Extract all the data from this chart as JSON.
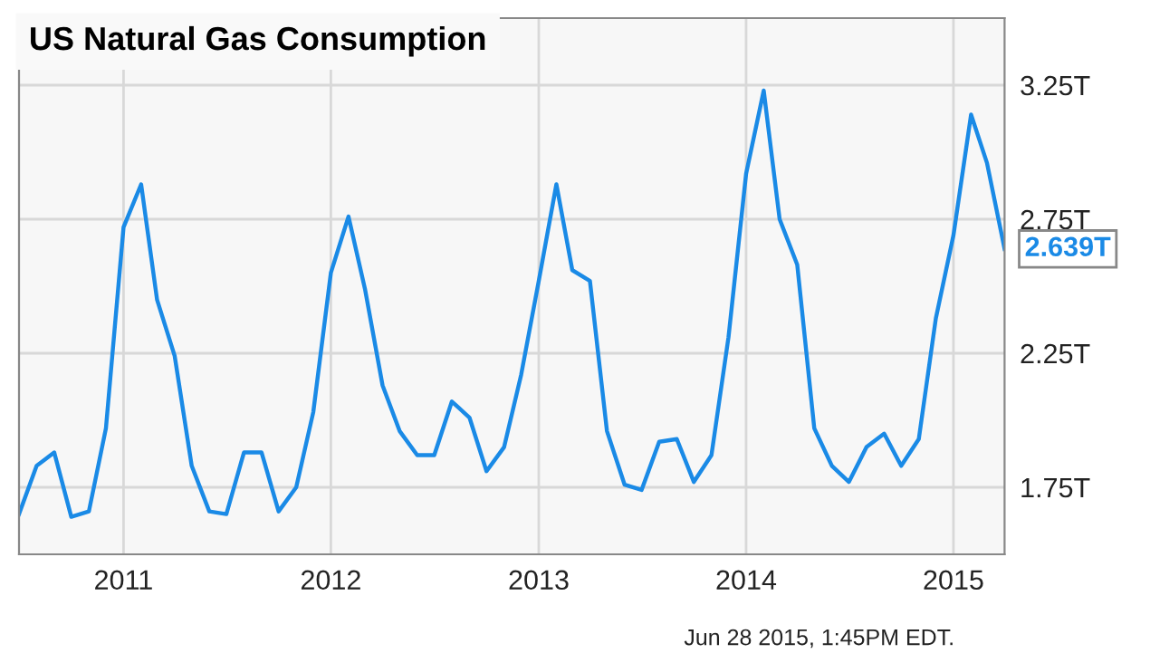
{
  "chart_data": {
    "type": "line",
    "title": "US Natural Gas Consumption",
    "x": [
      "2010-07",
      "2010-08",
      "2010-09",
      "2010-10",
      "2010-11",
      "2010-12",
      "2011-01",
      "2011-02",
      "2011-03",
      "2011-04",
      "2011-05",
      "2011-06",
      "2011-07",
      "2011-08",
      "2011-09",
      "2011-10",
      "2011-11",
      "2011-12",
      "2012-01",
      "2012-02",
      "2012-03",
      "2012-04",
      "2012-05",
      "2012-06",
      "2012-07",
      "2012-08",
      "2012-09",
      "2012-10",
      "2012-11",
      "2012-12",
      "2013-01",
      "2013-02",
      "2013-03",
      "2013-04",
      "2013-05",
      "2013-06",
      "2013-07",
      "2013-08",
      "2013-09",
      "2013-10",
      "2013-11",
      "2013-12",
      "2014-01",
      "2014-02",
      "2014-03",
      "2014-04",
      "2014-05",
      "2014-06",
      "2014-07",
      "2014-08",
      "2014-09",
      "2014-10",
      "2014-11",
      "2014-12",
      "2015-01",
      "2015-02",
      "2015-03",
      "2015-04"
    ],
    "series": [
      {
        "color": "#1a8ae6",
        "values": [
          1.65,
          1.83,
          1.88,
          1.64,
          1.66,
          1.97,
          2.72,
          2.88,
          2.45,
          2.24,
          1.83,
          1.66,
          1.65,
          1.88,
          1.88,
          1.66,
          1.75,
          2.03,
          2.55,
          2.76,
          2.49,
          2.13,
          1.96,
          1.87,
          1.87,
          2.07,
          2.01,
          1.81,
          1.9,
          2.17,
          2.52,
          2.88,
          2.56,
          2.52,
          1.96,
          1.76,
          1.74,
          1.92,
          1.93,
          1.77,
          1.87,
          2.31,
          2.92,
          3.23,
          2.75,
          2.58,
          1.97,
          1.83,
          1.77,
          1.9,
          1.95,
          1.83,
          1.93,
          2.38,
          2.69,
          3.14,
          2.96,
          2.639
        ]
      }
    ],
    "xlim": [
      "2010-07",
      "2015-04"
    ],
    "xticks": [
      {
        "value": "2011",
        "label": "2011"
      },
      {
        "value": "2012",
        "label": "2012"
      },
      {
        "value": "2013",
        "label": "2013"
      },
      {
        "value": "2014",
        "label": "2014"
      },
      {
        "value": "2015",
        "label": "2015"
      }
    ],
    "ylim": [
      1.5,
      3.5
    ],
    "yticks": [
      {
        "value": 1.75,
        "label": "1.75T"
      },
      {
        "value": 2.25,
        "label": "2.25T"
      },
      {
        "value": 2.75,
        "label": "2.75T"
      },
      {
        "value": 3.25,
        "label": "3.25T"
      }
    ],
    "grid": true,
    "annotations": [
      {
        "text": "2.639T",
        "x": "2015-04",
        "y": 2.639
      },
      "Jun 28 2015, 1:45PM EDT."
    ]
  }
}
